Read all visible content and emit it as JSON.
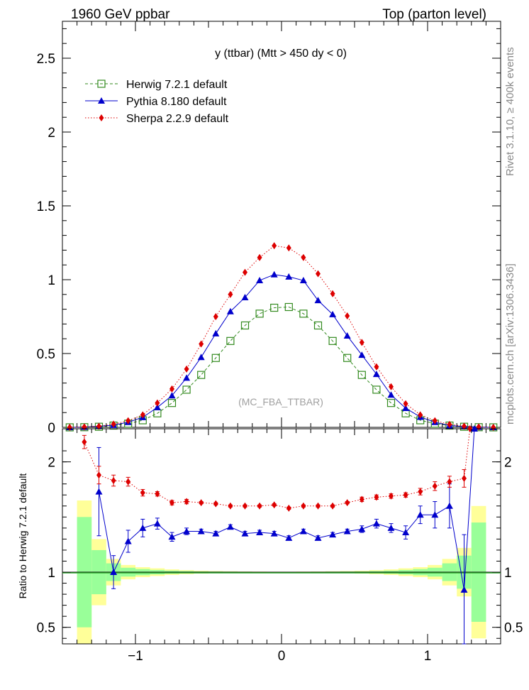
{
  "header": {
    "left_title": "1960 GeV ppbar",
    "right_title": "Top (parton level)"
  },
  "side_texts": {
    "rivet": "Rivet 3.1.10, ≥ 400k events",
    "mcplots": "mcplots.cern.ch [arXiv:1306.3436]"
  },
  "chart_data": [
    {
      "type": "line",
      "panel": "main",
      "title": "y (ttbar) (Mtt > 450 dy < 0)",
      "watermark": "(MC_FBA_TTBAR)",
      "xlim": [
        -1.5,
        1.5
      ],
      "ylim": [
        0,
        2.75
      ],
      "y_ticks": [
        0,
        0.5,
        1,
        1.5,
        2,
        2.5
      ],
      "y_tick_labels": [
        "0",
        "0.5",
        "1",
        "1.5",
        "2",
        "2.5"
      ],
      "x": [
        -1.45,
        -1.35,
        -1.25,
        -1.15,
        -1.05,
        -0.95,
        -0.85,
        -0.75,
        -0.65,
        -0.55,
        -0.45,
        -0.35,
        -0.25,
        -0.15,
        -0.05,
        0.05,
        0.15,
        0.25,
        0.35,
        0.45,
        0.55,
        0.65,
        0.75,
        0.85,
        0.95,
        1.05,
        1.15,
        1.25,
        1.35,
        1.45
      ],
      "series": [
        {
          "name": "Herwig 7.2.1 default",
          "color": "#338a1f",
          "marker": "open-square",
          "line": "dashed",
          "values": [
            0.0,
            0.001,
            0.004,
            0.012,
            0.025,
            0.048,
            0.095,
            0.165,
            0.255,
            0.355,
            0.47,
            0.585,
            0.69,
            0.77,
            0.81,
            0.815,
            0.77,
            0.69,
            0.585,
            0.47,
            0.355,
            0.255,
            0.165,
            0.095,
            0.048,
            0.025,
            0.012,
            0.004,
            0.001,
            0.0
          ]
        },
        {
          "name": "Pythia 8.180 default",
          "color": "#0000cc",
          "marker": "triangle",
          "line": "solid",
          "values": [
            0.0,
            0.002,
            0.007,
            0.015,
            0.035,
            0.068,
            0.135,
            0.215,
            0.335,
            0.475,
            0.635,
            0.785,
            0.88,
            0.995,
            1.035,
            1.02,
            0.995,
            0.86,
            0.765,
            0.62,
            0.49,
            0.36,
            0.22,
            0.13,
            0.07,
            0.035,
            0.012,
            0.006,
            0.002,
            0.0
          ]
        },
        {
          "name": "Sherpa 2.2.9 default",
          "color": "#dd0000",
          "marker": "diamond",
          "line": "dotted",
          "values": [
            0.0,
            0.003,
            0.007,
            0.022,
            0.045,
            0.085,
            0.165,
            0.26,
            0.395,
            0.565,
            0.75,
            0.9,
            1.05,
            1.15,
            1.23,
            1.215,
            1.15,
            1.04,
            0.905,
            0.755,
            0.575,
            0.41,
            0.275,
            0.16,
            0.085,
            0.045,
            0.02,
            0.008,
            0.003,
            0.0
          ]
        }
      ]
    },
    {
      "type": "line",
      "panel": "ratio",
      "ylabel": "Ratio to Herwig 7.2.1 default",
      "xlim": [
        -1.5,
        1.5
      ],
      "ylim": [
        0.35,
        2.3
      ],
      "y_ticks": [
        0.5,
        1,
        2
      ],
      "y_tick_labels": [
        "0.5",
        "1",
        "2"
      ],
      "x_ticks": [
        -1,
        0,
        1
      ],
      "x_tick_labels": [
        "−1",
        "0",
        "1"
      ],
      "band_x": [
        -1.35,
        -1.25,
        -1.15,
        -1.05,
        -0.95,
        -0.85,
        -0.75,
        -0.65,
        -0.55,
        -0.45,
        -0.35,
        -0.25,
        -0.15,
        -0.05,
        0.05,
        0.15,
        0.25,
        0.35,
        0.45,
        0.55,
        0.65,
        0.75,
        0.85,
        0.95,
        1.05,
        1.15,
        1.25,
        1.35
      ],
      "band_yellow_half": [
        0.65,
        0.3,
        0.12,
        0.065,
        0.045,
        0.035,
        0.025,
        0.018,
        0.013,
        0.01,
        0.008,
        0.006,
        0.005,
        0.004,
        0.004,
        0.005,
        0.006,
        0.008,
        0.01,
        0.013,
        0.018,
        0.025,
        0.035,
        0.045,
        0.065,
        0.12,
        0.22,
        0.6
      ],
      "band_green_half": [
        0.5,
        0.2,
        0.08,
        0.04,
        0.028,
        0.02,
        0.014,
        0.01,
        0.007,
        0.006,
        0.005,
        0.004,
        0.003,
        0.003,
        0.003,
        0.003,
        0.004,
        0.005,
        0.006,
        0.007,
        0.01,
        0.014,
        0.02,
        0.028,
        0.04,
        0.08,
        0.15,
        0.45
      ],
      "series": [
        {
          "name": "Pythia 8.180 default",
          "color": "#0000cc",
          "marker": "triangle",
          "line": "solid",
          "x": [
            -1.25,
            -1.15,
            -1.05,
            -0.95,
            -0.85,
            -0.75,
            -0.65,
            -0.55,
            -0.45,
            -0.35,
            -0.25,
            -0.15,
            -0.05,
            0.05,
            0.15,
            0.25,
            0.35,
            0.45,
            0.55,
            0.65,
            0.75,
            0.85,
            0.95,
            1.05,
            1.15,
            1.25,
            1.32
          ],
          "values": [
            1.73,
            1.0,
            1.28,
            1.4,
            1.44,
            1.32,
            1.37,
            1.37,
            1.35,
            1.41,
            1.35,
            1.36,
            1.35,
            1.31,
            1.37,
            1.31,
            1.34,
            1.37,
            1.39,
            1.44,
            1.4,
            1.36,
            1.52,
            1.52,
            1.6,
            0.84,
            2.3
          ],
          "err": [
            0.4,
            0.15,
            0.1,
            0.08,
            0.05,
            0.04,
            0.03,
            0.02,
            0.02,
            0.02,
            0.02,
            0.02,
            0.02,
            0.02,
            0.02,
            0.02,
            0.02,
            0.02,
            0.03,
            0.04,
            0.04,
            0.06,
            0.08,
            0.12,
            0.2,
            0.5,
            0.0
          ]
        },
        {
          "name": "Sherpa 2.2.9 default",
          "color": "#dd0000",
          "marker": "diamond",
          "line": "dotted",
          "x": [
            -1.35,
            -1.25,
            -1.15,
            -1.05,
            -0.95,
            -0.85,
            -0.75,
            -0.65,
            -0.55,
            -0.45,
            -0.35,
            -0.25,
            -0.15,
            -0.05,
            0.05,
            0.15,
            0.25,
            0.35,
            0.45,
            0.55,
            0.65,
            0.75,
            0.85,
            0.95,
            1.05,
            1.15,
            1.25,
            1.29
          ],
          "values": [
            2.18,
            1.88,
            1.83,
            1.82,
            1.72,
            1.71,
            1.63,
            1.64,
            1.63,
            1.62,
            1.6,
            1.6,
            1.6,
            1.61,
            1.58,
            1.6,
            1.6,
            1.6,
            1.63,
            1.66,
            1.68,
            1.69,
            1.7,
            1.73,
            1.78,
            1.82,
            1.85,
            2.3
          ],
          "err": [
            0.06,
            0.08,
            0.05,
            0.04,
            0.03,
            0.02,
            0.02,
            0.02,
            0.01,
            0.01,
            0.01,
            0.01,
            0.01,
            0.01,
            0.01,
            0.01,
            0.01,
            0.01,
            0.01,
            0.02,
            0.02,
            0.02,
            0.02,
            0.03,
            0.04,
            0.05,
            0.08,
            0.0
          ]
        }
      ]
    }
  ]
}
